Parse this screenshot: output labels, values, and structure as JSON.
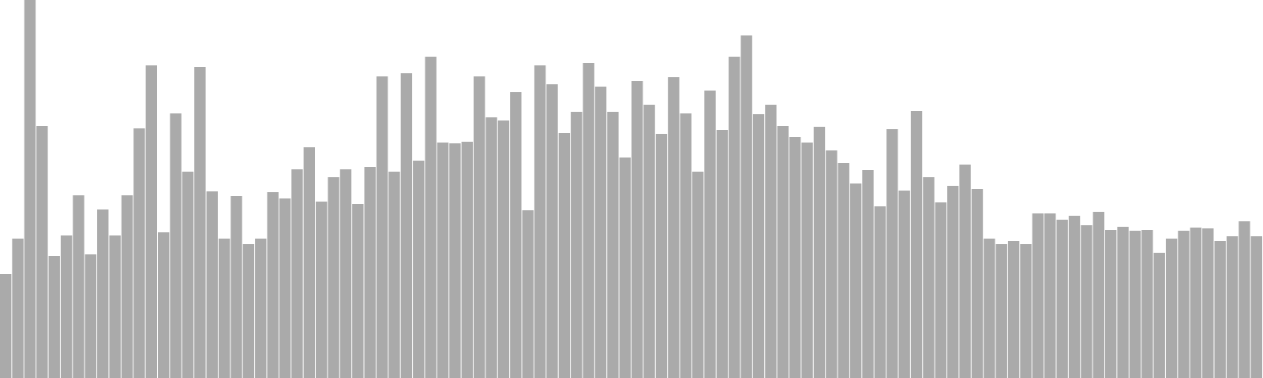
{
  "chart_data": {
    "type": "bar",
    "title": "",
    "xlabel": "",
    "ylabel": "",
    "ylim": [
      0,
      480
    ],
    "grid": false,
    "bar_color": "#aaaaaa",
    "values": [
      132,
      177,
      480,
      320,
      155,
      181,
      232,
      157,
      214,
      181,
      232,
      317,
      397,
      185,
      336,
      262,
      395,
      237,
      177,
      231,
      170,
      177,
      236,
      228,
      265,
      293,
      224,
      255,
      265,
      221,
      268,
      383,
      262,
      387,
      276,
      408,
      299,
      298,
      300,
      383,
      331,
      327,
      363,
      213,
      397,
      373,
      311,
      338,
      400,
      370,
      338,
      280,
      377,
      347,
      310,
      382,
      336,
      262,
      365,
      315,
      408,
      435,
      335,
      347,
      320,
      306,
      299,
      319,
      289,
      273,
      247,
      264,
      218,
      316,
      238,
      339,
      255,
      223,
      244,
      271,
      240,
      177,
      170,
      174,
      170,
      209,
      209,
      201,
      206,
      194,
      211,
      188,
      192,
      187,
      188,
      159,
      177,
      187,
      191,
      190,
      174,
      180,
      199,
      180
    ]
  }
}
